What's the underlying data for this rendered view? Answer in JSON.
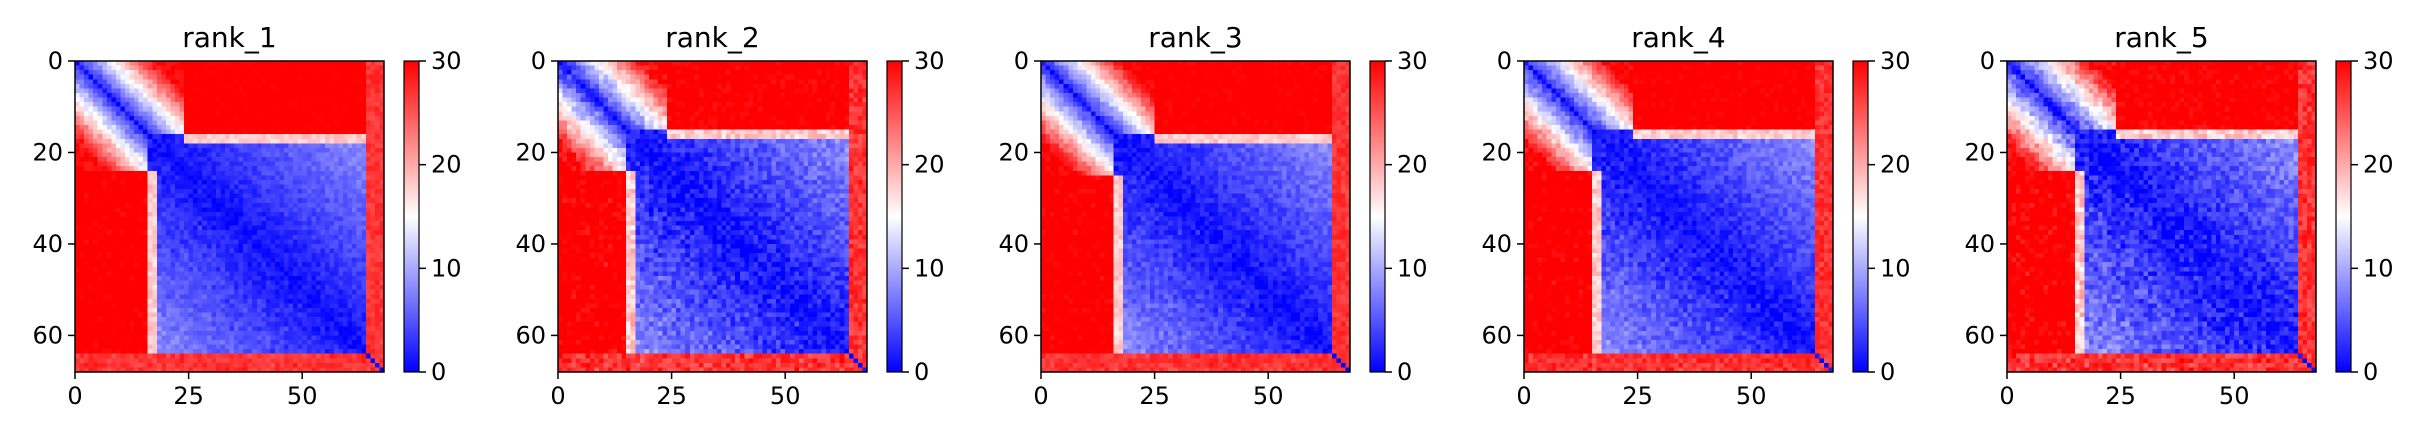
{
  "chart_data": [
    {
      "type": "heatmap",
      "title": "rank_1",
      "n": 68,
      "x_ticks": [
        0,
        25,
        50
      ],
      "y_ticks": [
        0,
        20,
        40,
        60
      ],
      "colorbar": {
        "ticks": [
          0,
          10,
          20,
          30
        ],
        "range": [
          0,
          30
        ],
        "colormap": "bwr"
      },
      "structure": {
        "block_end": 16,
        "far_block_start": 24,
        "bottom_rows": 64,
        "near_diag_slope": 1.6,
        "noise": 1.4
      }
    },
    {
      "type": "heatmap",
      "title": "rank_2",
      "n": 68,
      "x_ticks": [
        0,
        25,
        50
      ],
      "y_ticks": [
        0,
        20,
        40,
        60
      ],
      "colorbar": {
        "ticks": [
          0,
          10,
          20,
          30
        ],
        "range": [
          0,
          30
        ],
        "colormap": "bwr"
      },
      "structure": {
        "block_end": 15,
        "far_block_start": 24,
        "bottom_rows": 64,
        "near_diag_slope": 1.5,
        "noise": 2.2
      }
    },
    {
      "type": "heatmap",
      "title": "rank_3",
      "n": 68,
      "x_ticks": [
        0,
        25,
        50
      ],
      "y_ticks": [
        0,
        20,
        40,
        60
      ],
      "colorbar": {
        "ticks": [
          0,
          10,
          20,
          30
        ],
        "range": [
          0,
          30
        ],
        "colormap": "bwr"
      },
      "structure": {
        "block_end": 16,
        "far_block_start": 25,
        "bottom_rows": 64,
        "near_diag_slope": 1.6,
        "noise": 1.6
      }
    },
    {
      "type": "heatmap",
      "title": "rank_4",
      "n": 68,
      "x_ticks": [
        0,
        25,
        50
      ],
      "y_ticks": [
        0,
        20,
        40,
        60
      ],
      "colorbar": {
        "ticks": [
          0,
          10,
          20,
          30
        ],
        "range": [
          0,
          30
        ],
        "colormap": "bwr"
      },
      "structure": {
        "block_end": 15,
        "far_block_start": 24,
        "bottom_rows": 64,
        "near_diag_slope": 1.55,
        "noise": 1.8
      }
    },
    {
      "type": "heatmap",
      "title": "rank_5",
      "n": 68,
      "x_ticks": [
        0,
        25,
        50
      ],
      "y_ticks": [
        0,
        20,
        40,
        60
      ],
      "colorbar": {
        "ticks": [
          0,
          10,
          20,
          30
        ],
        "range": [
          0,
          30
        ],
        "colormap": "bwr"
      },
      "structure": {
        "block_end": 15,
        "far_block_start": 24,
        "bottom_rows": 64,
        "near_diag_slope": 1.5,
        "noise": 2.4
      }
    }
  ]
}
